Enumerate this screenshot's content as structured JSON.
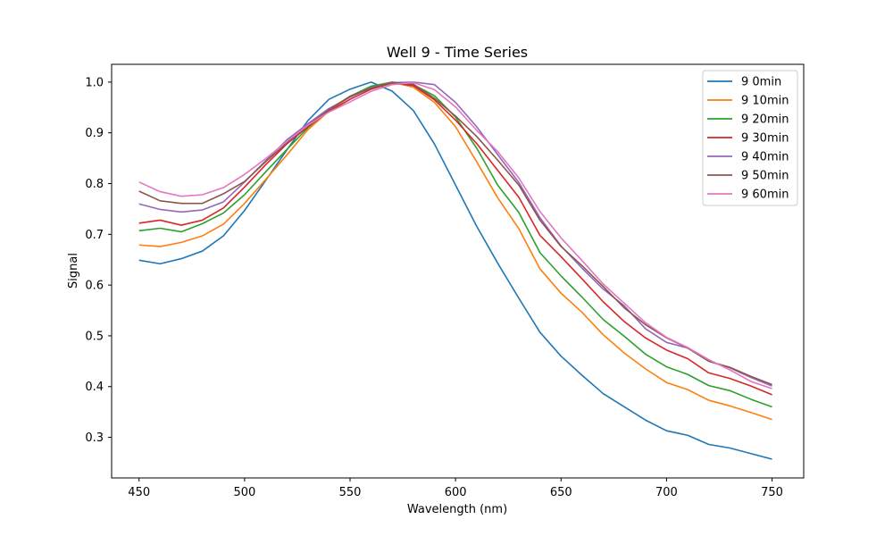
{
  "chart_data": {
    "type": "line",
    "title": "Well 9 - Time Series",
    "xlabel": "Wavelength (nm)",
    "ylabel": "Signal",
    "xlim": [
      437,
      765
    ],
    "ylim": [
      0.22,
      1.035
    ],
    "xticks": [
      450,
      500,
      550,
      600,
      650,
      700,
      750
    ],
    "xtick_labels": [
      "450",
      "500",
      "550",
      "600",
      "650",
      "700",
      "750"
    ],
    "yticks": [
      0.3,
      0.4,
      0.5,
      0.6,
      0.7,
      0.8,
      0.9,
      1.0
    ],
    "ytick_labels": [
      "0.3",
      "0.4",
      "0.5",
      "0.6",
      "0.7",
      "0.8",
      "0.9",
      "1.0"
    ],
    "grid": false,
    "legend_position": "top-right",
    "x": [
      450,
      460,
      470,
      480,
      490,
      500,
      510,
      520,
      530,
      540,
      550,
      560,
      570,
      580,
      590,
      600,
      610,
      620,
      630,
      640,
      650,
      660,
      670,
      680,
      690,
      700,
      710,
      720,
      730,
      740,
      750
    ],
    "series": [
      {
        "name": "9 0min",
        "color": "#1f77b4",
        "values": [
          0.649,
          0.642,
          0.652,
          0.667,
          0.697,
          0.747,
          0.806,
          0.866,
          0.924,
          0.966,
          0.986,
          1.0,
          0.982,
          0.944,
          0.878,
          0.797,
          0.716,
          0.643,
          0.574,
          0.507,
          0.46,
          0.422,
          0.386,
          0.36,
          0.334,
          0.313,
          0.304,
          0.286,
          0.279,
          0.268,
          0.257
        ]
      },
      {
        "name": "9 10min",
        "color": "#ff7f0e",
        "values": [
          0.679,
          0.676,
          0.684,
          0.697,
          0.72,
          0.761,
          0.808,
          0.856,
          0.906,
          0.943,
          0.971,
          0.99,
          1.0,
          0.99,
          0.96,
          0.912,
          0.843,
          0.772,
          0.711,
          0.632,
          0.584,
          0.546,
          0.502,
          0.466,
          0.435,
          0.408,
          0.394,
          0.373,
          0.362,
          0.349,
          0.335
        ]
      },
      {
        "name": "9 20min",
        "color": "#2ca02c",
        "values": [
          0.707,
          0.712,
          0.705,
          0.721,
          0.742,
          0.778,
          0.823,
          0.867,
          0.91,
          0.946,
          0.972,
          0.992,
          1.0,
          0.995,
          0.973,
          0.931,
          0.87,
          0.797,
          0.743,
          0.664,
          0.618,
          0.576,
          0.532,
          0.499,
          0.464,
          0.439,
          0.424,
          0.402,
          0.392,
          0.375,
          0.36
        ]
      },
      {
        "name": "9 30min",
        "color": "#d62728",
        "values": [
          0.722,
          0.728,
          0.718,
          0.728,
          0.752,
          0.793,
          0.837,
          0.878,
          0.912,
          0.942,
          0.966,
          0.986,
          0.998,
          0.993,
          0.965,
          0.925,
          0.879,
          0.826,
          0.773,
          0.698,
          0.656,
          0.612,
          0.567,
          0.528,
          0.496,
          0.472,
          0.455,
          0.427,
          0.416,
          0.401,
          0.384
        ]
      },
      {
        "name": "9 40min",
        "color": "#9467bd",
        "values": [
          0.76,
          0.749,
          0.744,
          0.748,
          0.764,
          0.803,
          0.845,
          0.886,
          0.918,
          0.948,
          0.97,
          0.989,
          0.999,
          1.0,
          0.995,
          0.96,
          0.912,
          0.857,
          0.802,
          0.733,
          0.677,
          0.633,
          0.592,
          0.559,
          0.514,
          0.487,
          0.476,
          0.45,
          0.437,
          0.418,
          0.401
        ]
      },
      {
        "name": "9 50min",
        "color": "#8c564b",
        "values": [
          0.785,
          0.766,
          0.761,
          0.761,
          0.78,
          0.804,
          0.843,
          0.88,
          0.915,
          0.945,
          0.972,
          0.988,
          0.999,
          0.996,
          0.968,
          0.933,
          0.893,
          0.846,
          0.797,
          0.728,
          0.676,
          0.638,
          0.597,
          0.555,
          0.522,
          0.496,
          0.476,
          0.45,
          0.438,
          0.42,
          0.404
        ]
      },
      {
        "name": "9 60min",
        "color": "#e377c2",
        "values": [
          0.803,
          0.784,
          0.775,
          0.778,
          0.792,
          0.818,
          0.849,
          0.883,
          0.915,
          0.941,
          0.961,
          0.982,
          0.995,
          0.999,
          0.985,
          0.951,
          0.905,
          0.863,
          0.811,
          0.745,
          0.693,
          0.648,
          0.602,
          0.564,
          0.526,
          0.497,
          0.477,
          0.453,
          0.433,
          0.41,
          0.396
        ]
      }
    ]
  }
}
